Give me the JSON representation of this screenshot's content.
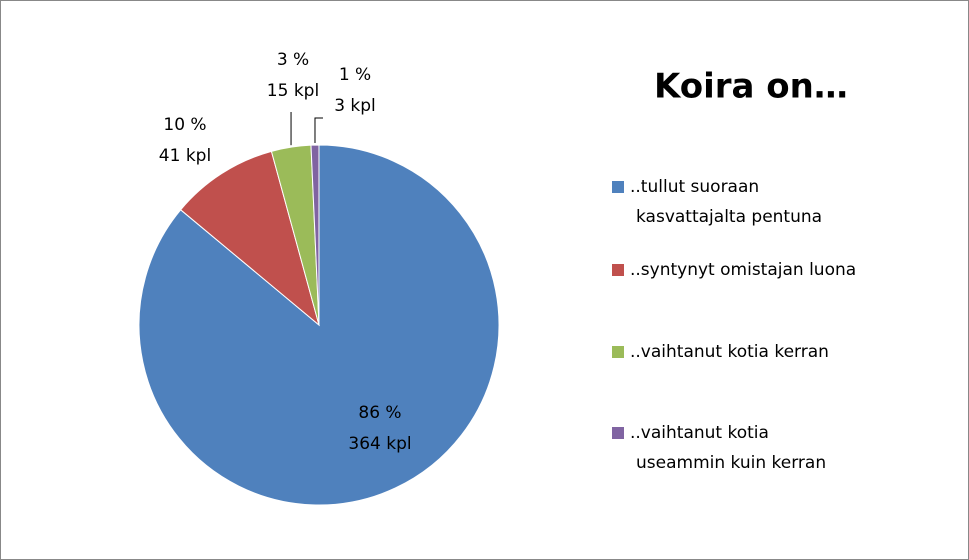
{
  "chart_data": {
    "type": "pie",
    "title": "Koira on…",
    "categories": [
      "..tullut suoraan kasvattajalta pentuna",
      "..syntynyt omistajan luona",
      "..vaihtanut kotia kerran",
      "..vaihtanut kotia useammin kuin kerran"
    ],
    "values": [
      364,
      41,
      15,
      3
    ],
    "value_labels": [
      "364 kpl",
      "41 kpl",
      "15 kpl",
      "3 kpl"
    ],
    "percent_labels": [
      "86 %",
      "10 %",
      "3 %",
      "1 %"
    ],
    "colors": [
      "#4f81bd",
      "#c0504d",
      "#9bbb59",
      "#8064a2"
    ],
    "legend": "right"
  }
}
